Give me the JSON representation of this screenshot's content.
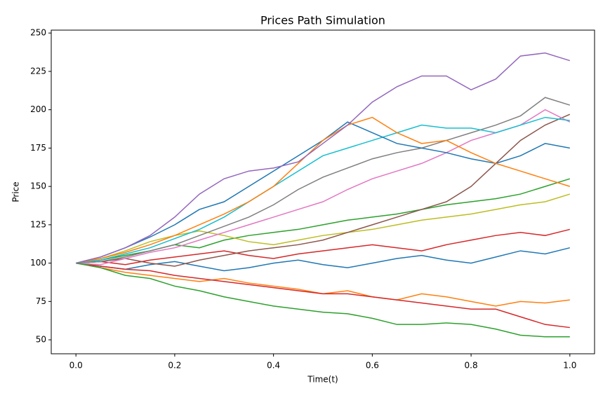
{
  "chart_data": {
    "type": "line",
    "title": "Prices Path Simulation",
    "xlabel": "Time(t)",
    "ylabel": "Price",
    "x": [
      0,
      0.05,
      0.1,
      0.15,
      0.2,
      0.25,
      0.3,
      0.35,
      0.4,
      0.45,
      0.5,
      0.55,
      0.6,
      0.65,
      0.7,
      0.75,
      0.8,
      0.85,
      0.9,
      0.95,
      1
    ],
    "xlim": [
      -0.05,
      1.05
    ],
    "xticks": [
      {
        "value": 0,
        "label": "0.0"
      },
      0.2,
      0.4,
      0.6,
      0.8,
      {
        "value": 1,
        "label": "1.0"
      }
    ],
    "ylim": [
      40.9,
      251.9
    ],
    "yticks": [
      50,
      75,
      100,
      125,
      150,
      175,
      200,
      225,
      250
    ],
    "series": [
      {
        "color": "#1f77b4",
        "values": [
          100,
          98,
          96,
          99,
          101,
          98,
          95,
          97,
          100,
          102,
          99,
          97,
          100,
          103,
          105,
          102,
          100,
          104,
          108,
          106,
          110
        ]
      },
      {
        "color": "#ff7f0e",
        "values": [
          100,
          97,
          94,
          92,
          90,
          88,
          90,
          87,
          85,
          83,
          80,
          82,
          78,
          76,
          80,
          78,
          75,
          72,
          75,
          74,
          76
        ]
      },
      {
        "color": "#2ca02c",
        "values": [
          100,
          102,
          105,
          108,
          112,
          110,
          115,
          118,
          120,
          122,
          125,
          128,
          130,
          132,
          135,
          138,
          140,
          142,
          145,
          150,
          155
        ]
      },
      {
        "color": "#d62728",
        "values": [
          100,
          101,
          99,
          102,
          104,
          106,
          108,
          105,
          103,
          106,
          108,
          110,
          112,
          110,
          108,
          112,
          115,
          118,
          120,
          118,
          122
        ]
      },
      {
        "color": "#bcbd22",
        "values": [
          100,
          103,
          108,
          114,
          118,
          121,
          118,
          114,
          112,
          115,
          118,
          120,
          122,
          125,
          128,
          130,
          132,
          135,
          138,
          140,
          145
        ]
      },
      {
        "color": "#8c564b",
        "values": [
          100,
          101,
          103,
          100,
          98,
          102,
          105,
          108,
          110,
          112,
          115,
          120,
          125,
          130,
          135,
          140,
          150,
          165,
          180,
          190,
          197
        ]
      },
      {
        "color": "#d62728",
        "values": [
          100,
          98,
          96,
          95,
          92,
          90,
          88,
          86,
          84,
          82,
          80,
          80,
          78,
          76,
          74,
          72,
          70,
          70,
          65,
          60,
          58
        ]
      },
      {
        "color": "#e377c2",
        "values": [
          100,
          99,
          103,
          107,
          110,
          115,
          120,
          125,
          130,
          135,
          140,
          148,
          155,
          160,
          165,
          172,
          180,
          185,
          190,
          200,
          192
        ]
      },
      {
        "color": "#7f7f7f",
        "values": [
          100,
          101,
          104,
          108,
          112,
          118,
          124,
          130,
          138,
          148,
          156,
          162,
          168,
          172,
          175,
          180,
          185,
          190,
          196,
          208,
          203
        ]
      },
      {
        "color": "#17becf",
        "values": [
          100,
          102,
          106,
          110,
          116,
          122,
          130,
          140,
          150,
          160,
          170,
          175,
          180,
          185,
          190,
          188,
          188,
          185,
          190,
          195,
          193
        ]
      },
      {
        "color": "#1f77b4",
        "values": [
          100,
          104,
          110,
          117,
          125,
          135,
          140,
          150,
          160,
          170,
          180,
          192,
          185,
          178,
          175,
          172,
          168,
          165,
          170,
          178,
          175
        ]
      },
      {
        "color": "#ff7f0e",
        "values": [
          100,
          103,
          107,
          112,
          118,
          125,
          132,
          140,
          150,
          165,
          180,
          190,
          195,
          185,
          178,
          180,
          172,
          165,
          160,
          155,
          150
        ]
      },
      {
        "color": "#2ca02c",
        "values": [
          100,
          97,
          92,
          90,
          85,
          82,
          78,
          75,
          72,
          70,
          68,
          67,
          64,
          60,
          60,
          61,
          60,
          57,
          53,
          52,
          52
        ]
      },
      {
        "color": "#9467bd",
        "values": [
          100,
          104,
          110,
          118,
          130,
          145,
          155,
          160,
          162,
          166,
          178,
          190,
          205,
          215,
          222,
          222,
          213,
          220,
          235,
          237,
          232
        ]
      }
    ]
  }
}
